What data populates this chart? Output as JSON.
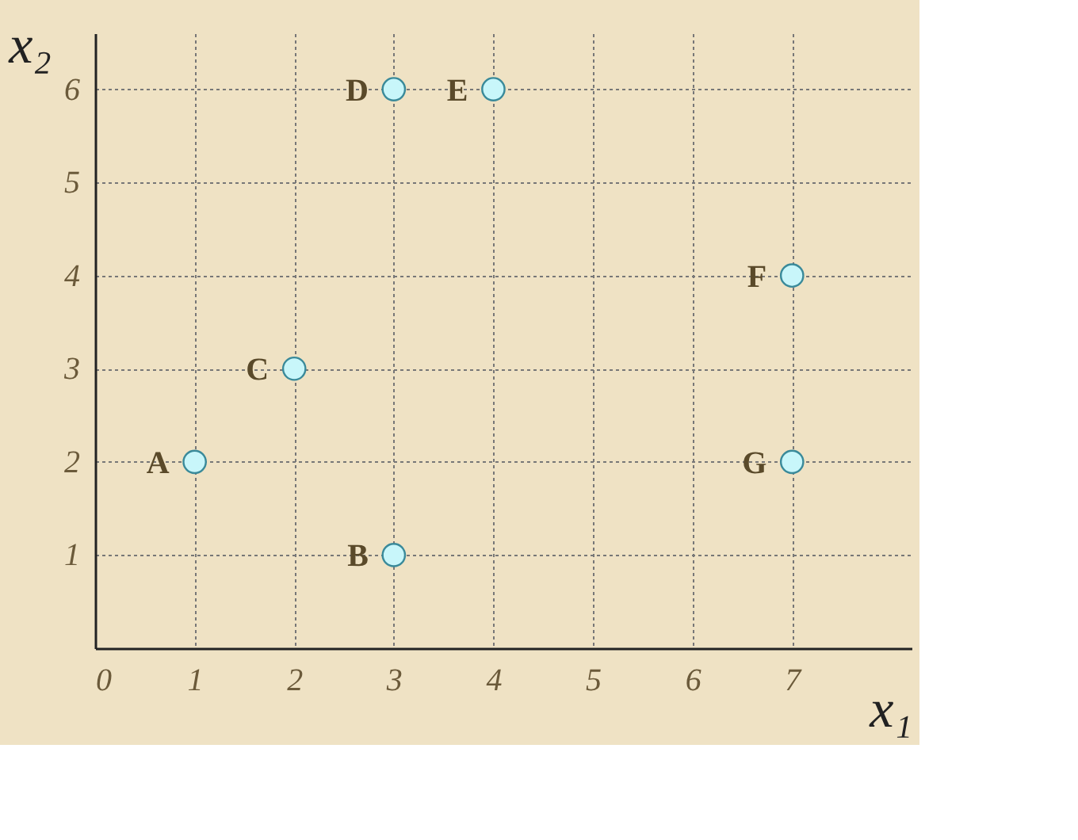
{
  "chart_data": {
    "type": "scatter",
    "xlabel": "x₁",
    "ylabel": "x₂",
    "x": [
      1,
      3,
      2,
      3,
      4,
      7,
      7
    ],
    "series": [
      {
        "color": "#c8f6fa",
        "values": [
          2,
          1,
          3,
          6,
          6,
          4,
          2
        ]
      }
    ],
    "annotations": [
      {
        "text": "A",
        "x": 1,
        "y": 2
      },
      {
        "text": "B",
        "x": 3,
        "y": 1
      },
      {
        "text": "C",
        "x": 2,
        "y": 3
      },
      {
        "text": "D",
        "x": 3,
        "y": 6
      },
      {
        "text": "E",
        "x": 4,
        "y": 6
      },
      {
        "text": "F",
        "x": 7,
        "y": 4
      },
      {
        "text": "G",
        "x": 7,
        "y": 2
      }
    ],
    "xlim": [
      0,
      8.2
    ],
    "ylim": [
      0,
      6.6
    ],
    "xticks": [
      0,
      1,
      2,
      3,
      4,
      5,
      6,
      7
    ],
    "yticks": [
      1,
      2,
      3,
      4,
      5,
      6
    ],
    "grid": true,
    "marker": "circle"
  }
}
